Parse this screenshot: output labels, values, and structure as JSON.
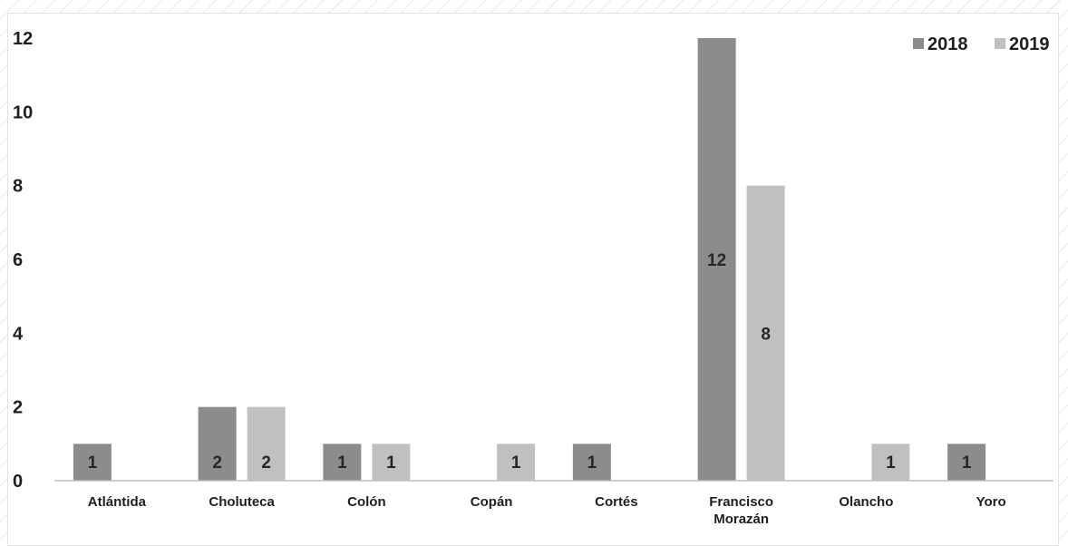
{
  "chart_data": {
    "type": "bar",
    "categories": [
      "Atlántida",
      "Choluteca",
      "Colón",
      "Copán",
      "Cortés",
      "Francisco Morazán",
      "Olancho",
      "Yoro"
    ],
    "category_lines": [
      [
        "Atlántida"
      ],
      [
        "Choluteca"
      ],
      [
        "Colón"
      ],
      [
        "Copán"
      ],
      [
        "Cortés"
      ],
      [
        "Francisco",
        "Morazán"
      ],
      [
        "Olancho"
      ],
      [
        "Yoro"
      ]
    ],
    "series": [
      {
        "name": "2018",
        "color": "#8c8c8c",
        "values": [
          1,
          2,
          1,
          null,
          1,
          12,
          null,
          1
        ]
      },
      {
        "name": "2019",
        "color": "#c0c0c0",
        "values": [
          null,
          2,
          1,
          1,
          null,
          8,
          1,
          null
        ]
      }
    ],
    "yticks": [
      0,
      2,
      4,
      6,
      8,
      10,
      12
    ],
    "ylim": [
      0,
      12
    ],
    "grid": false,
    "legend_position": "top-right",
    "data_labels": true,
    "title": "",
    "xlabel": "",
    "ylabel": ""
  }
}
